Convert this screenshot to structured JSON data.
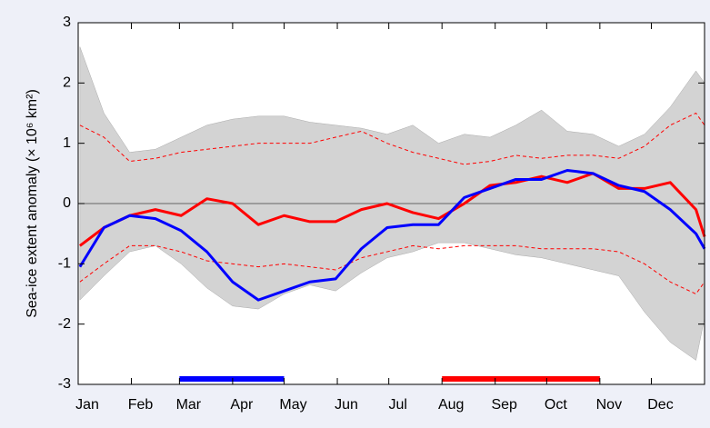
{
  "chart_data": {
    "type": "line",
    "y_label": "Sea-ice extent anomaly (× 10⁶ km²)",
    "xlim": [
      0,
      365
    ],
    "xticks": [
      {
        "value": 0,
        "label": "Jan"
      },
      {
        "value": 31,
        "label": "Feb"
      },
      {
        "value": 59,
        "label": "Mar"
      },
      {
        "value": 90,
        "label": "Apr"
      },
      {
        "value": 120,
        "label": "May"
      },
      {
        "value": 151,
        "label": "Jun"
      },
      {
        "value": 181,
        "label": "Jul"
      },
      {
        "value": 212,
        "label": "Aug"
      },
      {
        "value": 243,
        "label": "Sep"
      },
      {
        "value": 273,
        "label": "Oct"
      },
      {
        "value": 304,
        "label": "Nov"
      },
      {
        "value": 334,
        "label": "Dec"
      }
    ],
    "ylim": [
      -3,
      3
    ],
    "yticks": [
      -3,
      -2,
      -1,
      0,
      1,
      2,
      3
    ],
    "x": [
      1,
      15,
      30,
      45,
      60,
      75,
      90,
      105,
      120,
      135,
      150,
      165,
      180,
      195,
      210,
      225,
      240,
      255,
      270,
      285,
      300,
      315,
      330,
      345,
      360,
      365
    ],
    "envelope": {
      "color": "#d3d3d3",
      "upper": [
        2.6,
        1.5,
        0.85,
        0.9,
        1.1,
        1.3,
        1.4,
        1.45,
        1.45,
        1.35,
        1.3,
        1.25,
        1.15,
        1.3,
        1.0,
        1.15,
        1.1,
        1.3,
        1.55,
        1.2,
        1.15,
        0.95,
        1.15,
        1.6,
        2.2,
        2.0
      ],
      "lower": [
        -1.6,
        -1.2,
        -0.8,
        -0.7,
        -1.0,
        -1.4,
        -1.7,
        -1.75,
        -1.5,
        -1.35,
        -1.45,
        -1.15,
        -0.9,
        -0.8,
        -0.65,
        -0.65,
        -0.75,
        -0.85,
        -0.9,
        -1.0,
        -1.1,
        -1.2,
        -1.8,
        -2.3,
        -2.6,
        -1.9
      ]
    },
    "sigma_band": {
      "color": "#ff0000",
      "upper": [
        1.3,
        1.1,
        0.7,
        0.75,
        0.85,
        0.9,
        0.95,
        1.0,
        1.0,
        1.0,
        1.1,
        1.2,
        1.0,
        0.85,
        0.75,
        0.65,
        0.7,
        0.8,
        0.75,
        0.8,
        0.8,
        0.75,
        0.95,
        1.3,
        1.5,
        1.3
      ],
      "lower": [
        -1.3,
        -1.0,
        -0.7,
        -0.7,
        -0.8,
        -0.95,
        -1.0,
        -1.05,
        -1.0,
        -1.05,
        -1.1,
        -0.9,
        -0.8,
        -0.7,
        -0.75,
        -0.7,
        -0.7,
        -0.7,
        -0.75,
        -0.75,
        -0.75,
        -0.8,
        -1.0,
        -1.3,
        -1.5,
        -1.3
      ]
    },
    "series": [
      {
        "color": "#ff0000",
        "values": [
          -0.7,
          -0.4,
          -0.2,
          -0.1,
          -0.2,
          0.08,
          0.0,
          -0.35,
          -0.2,
          -0.3,
          -0.3,
          -0.1,
          0.0,
          -0.15,
          -0.25,
          0.0,
          0.3,
          0.35,
          0.45,
          0.35,
          0.5,
          0.25,
          0.25,
          0.35,
          -0.1,
          -0.55
        ]
      },
      {
        "color": "#0000ff",
        "values": [
          -1.05,
          -0.4,
          -0.2,
          -0.25,
          -0.45,
          -0.8,
          -1.3,
          -1.6,
          -1.45,
          -1.3,
          -1.25,
          -0.75,
          -0.4,
          -0.35,
          -0.35,
          0.1,
          0.25,
          0.4,
          0.4,
          0.55,
          0.5,
          0.3,
          0.2,
          -0.1,
          -0.5,
          -0.75
        ]
      }
    ],
    "periods": [
      {
        "color": "#0000ff",
        "start": 59,
        "end": 120
      },
      {
        "color": "#ff0000",
        "start": 212,
        "end": 304
      }
    ]
  }
}
